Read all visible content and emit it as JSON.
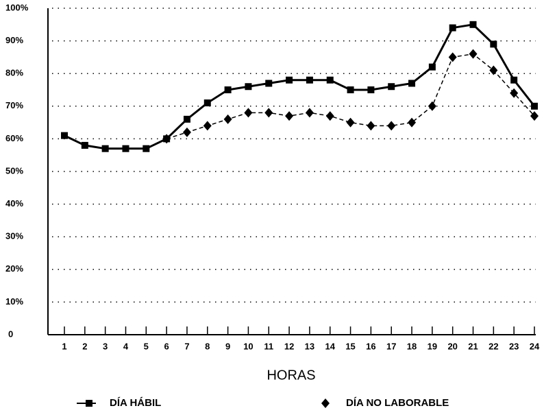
{
  "chart_data": {
    "type": "line",
    "x_label": "HORAS",
    "categories": [
      "1",
      "2",
      "3",
      "4",
      "5",
      "6",
      "7",
      "8",
      "9",
      "10",
      "11",
      "12",
      "13",
      "14",
      "15",
      "16",
      "17",
      "18",
      "19",
      "20",
      "21",
      "22",
      "23",
      "24"
    ],
    "series": [
      {
        "name": "DÍA HÁBIL",
        "color": "#000000",
        "marker": "square",
        "dash": false,
        "values": [
          61,
          58,
          57,
          57,
          57,
          60,
          66,
          71,
          75,
          76,
          77,
          78,
          78,
          78,
          75,
          75,
          76,
          77,
          82,
          94,
          95,
          89,
          78,
          70
        ]
      },
      {
        "name": "DÍA NO LABORABLE",
        "color": "#000000",
        "marker": "diamond",
        "dash": true,
        "values": [
          null,
          null,
          null,
          null,
          null,
          60,
          62,
          64,
          66,
          68,
          68,
          67,
          68,
          67,
          65,
          64,
          64,
          65,
          70,
          85,
          86,
          81,
          74,
          67
        ]
      }
    ],
    "ylim": [
      0,
      100
    ],
    "yticks": [
      0,
      {
        "value": 10,
        "label": "10%"
      },
      {
        "value": 20,
        "label": "20%"
      },
      {
        "value": 30,
        "label": "30%"
      },
      {
        "value": 40,
        "label": "40%"
      },
      {
        "value": 50,
        "label": "50%"
      },
      {
        "value": 60,
        "label": "60%"
      },
      {
        "value": 70,
        "label": "70%"
      },
      {
        "value": 80,
        "label": "80%"
      },
      {
        "value": 90,
        "label": "90%"
      },
      {
        "value": 100,
        "label": "100%"
      }
    ],
    "grid": true
  }
}
